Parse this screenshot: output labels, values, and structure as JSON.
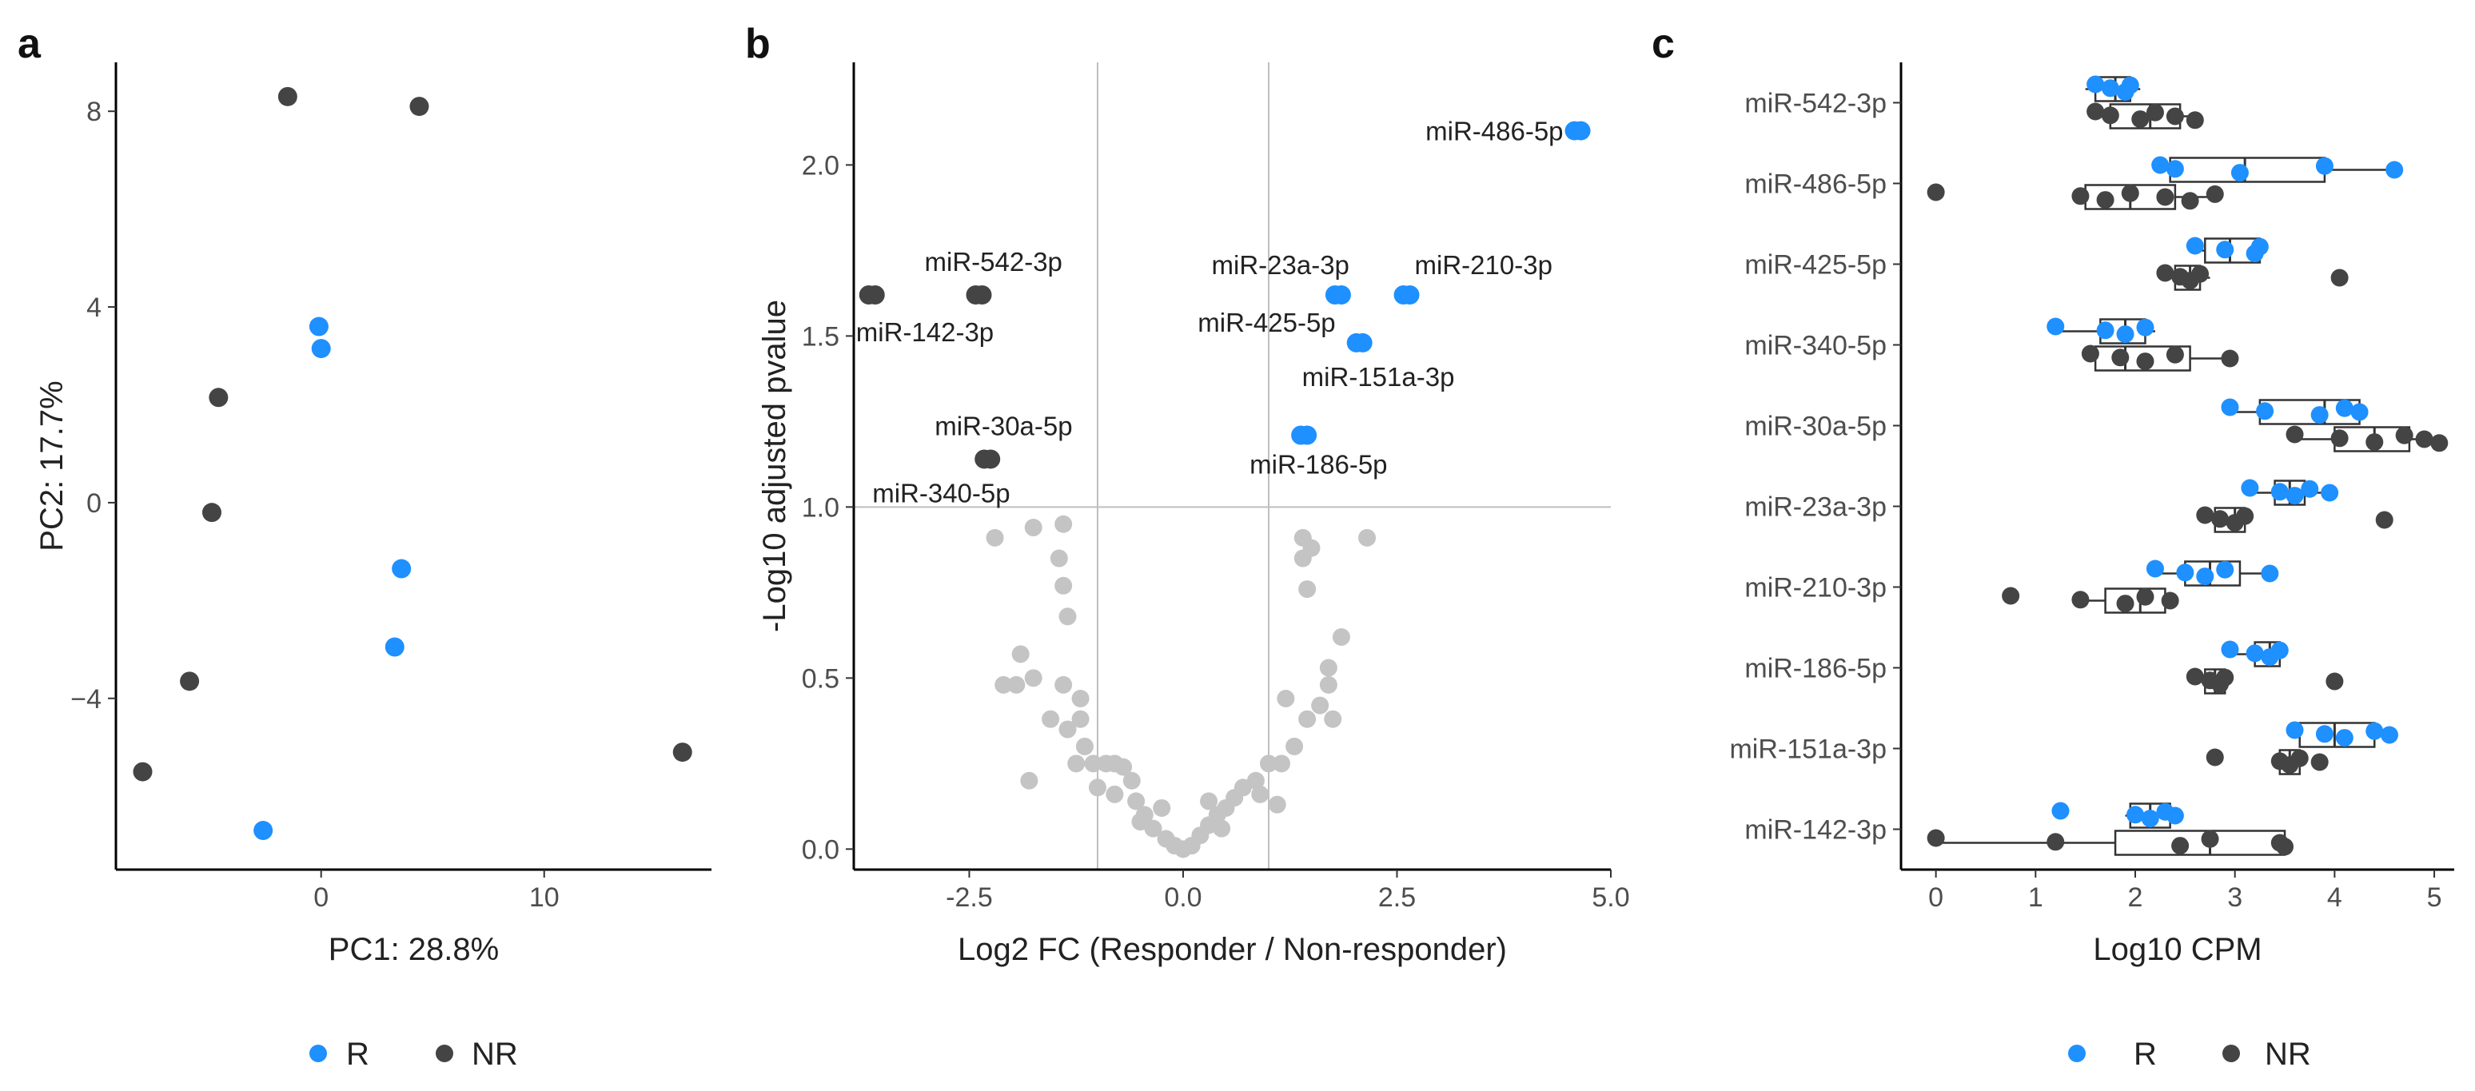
{
  "colors": {
    "R": "#1E90FF",
    "NR": "#444444",
    "ns": "#C4C4C4",
    "ref_line": "#BEBEBE",
    "box_line": "#333333"
  },
  "legend_a": {
    "r_label": "R",
    "nr_label": "NR"
  },
  "legend_c": {
    "r_label": "R",
    "nr_label": "NR"
  },
  "chart_data": [
    {
      "panel": "a",
      "type": "scatter",
      "xlabel": "PC1: 28.8%",
      "ylabel": "PC2: 17.7%",
      "xlim": [
        -9.2,
        17.5
      ],
      "ylim": [
        -7.5,
        9.0
      ],
      "xticks": [
        0,
        10
      ],
      "yticks": [
        -4,
        0,
        4,
        8
      ],
      "grid": false,
      "legend": "bottom",
      "series": [
        {
          "name": "R",
          "points": [
            [
              -0.1,
              3.6
            ],
            [
              0.0,
              3.15
            ],
            [
              3.6,
              -1.35
            ],
            [
              3.3,
              -2.95
            ],
            [
              -2.6,
              -6.7
            ]
          ]
        },
        {
          "name": "NR",
          "points": [
            [
              -1.5,
              8.3
            ],
            [
              4.4,
              8.1
            ],
            [
              -4.6,
              2.15
            ],
            [
              -4.9,
              -0.2
            ],
            [
              -5.9,
              -3.65
            ],
            [
              -8.0,
              -5.5
            ],
            [
              16.2,
              -5.1
            ]
          ]
        }
      ]
    },
    {
      "panel": "b",
      "type": "scatter",
      "xlabel": "Log2 FC (Responder / Non-responder)",
      "ylabel": "-Log10 adjusted pvalue",
      "xlim": [
        -3.85,
        5.0
      ],
      "ylim": [
        -0.06,
        2.3
      ],
      "xticks": [
        -2.5,
        0.0,
        2.5,
        5.0
      ],
      "xtick_labels": [
        "-2.5",
        "0.0",
        "2.5",
        "5.0"
      ],
      "yticks": [
        0.0,
        0.5,
        1.0,
        1.5,
        2.0
      ],
      "ytick_labels": [
        "0.0",
        "0.5",
        "1.0",
        "1.5",
        "2.0"
      ],
      "vlines": [
        -1,
        1
      ],
      "hlines": [
        1.0
      ],
      "grid": false,
      "labeled_points": [
        {
          "label": "miR-486-5p",
          "group": "R",
          "x": 4.65,
          "y": 2.1
        },
        {
          "label": "miR-23a-3p",
          "group": "R",
          "x": 1.85,
          "y": 1.62
        },
        {
          "label": "miR-210-3p",
          "group": "R",
          "x": 2.65,
          "y": 1.62
        },
        {
          "label": "miR-425-5p",
          "group": "R",
          "x": 2.1,
          "y": 1.48
        },
        {
          "label": "miR-151a-3p",
          "group": "R",
          "x": 2.1,
          "y": 1.48
        },
        {
          "label": "miR-186-5p",
          "group": "R",
          "x": 1.45,
          "y": 1.21
        },
        {
          "label": "miR-542-3p",
          "group": "NR",
          "x": -2.35,
          "y": 1.62
        },
        {
          "label": "miR-142-3p",
          "group": "NR",
          "x": -3.6,
          "y": 1.62
        },
        {
          "label": "miR-30a-5p",
          "group": "NR",
          "x": -2.25,
          "y": 1.14
        },
        {
          "label": "miR-340-5p",
          "group": "NR",
          "x": -2.25,
          "y": 1.14
        }
      ],
      "nonsignificant_points": [
        [
          -2.2,
          0.91
        ],
        [
          -1.75,
          0.94
        ],
        [
          -1.4,
          0.95
        ],
        [
          -1.45,
          0.85
        ],
        [
          -1.4,
          0.77
        ],
        [
          -1.35,
          0.68
        ],
        [
          -1.9,
          0.57
        ],
        [
          -2.1,
          0.48
        ],
        [
          -1.95,
          0.48
        ],
        [
          -1.75,
          0.5
        ],
        [
          -1.4,
          0.48
        ],
        [
          -1.55,
          0.38
        ],
        [
          -1.35,
          0.35
        ],
        [
          -1.2,
          0.44
        ],
        [
          -1.2,
          0.38
        ],
        [
          -1.15,
          0.3
        ],
        [
          -1.25,
          0.25
        ],
        [
          -1.05,
          0.25
        ],
        [
          -0.9,
          0.25
        ],
        [
          -0.8,
          0.25
        ],
        [
          -0.7,
          0.24
        ],
        [
          -0.6,
          0.2
        ],
        [
          -0.55,
          0.14
        ],
        [
          -0.45,
          0.1
        ],
        [
          -0.35,
          0.06
        ],
        [
          -0.2,
          0.03
        ],
        [
          -0.1,
          0.01
        ],
        [
          0.0,
          0.0
        ],
        [
          0.1,
          0.01
        ],
        [
          0.2,
          0.04
        ],
        [
          0.3,
          0.07
        ],
        [
          0.4,
          0.1
        ],
        [
          0.5,
          0.12
        ],
        [
          0.6,
          0.15
        ],
        [
          0.7,
          0.18
        ],
        [
          0.85,
          0.2
        ],
        [
          1.0,
          0.25
        ],
        [
          1.15,
          0.25
        ],
        [
          1.3,
          0.3
        ],
        [
          1.45,
          0.38
        ],
        [
          1.6,
          0.42
        ],
        [
          1.2,
          0.44
        ],
        [
          1.7,
          0.48
        ],
        [
          1.75,
          0.38
        ],
        [
          1.7,
          0.53
        ],
        [
          1.45,
          0.76
        ],
        [
          1.4,
          0.85
        ],
        [
          1.4,
          0.91
        ],
        [
          1.5,
          0.88
        ],
        [
          1.85,
          0.62
        ],
        [
          2.15,
          0.91
        ],
        [
          -1.0,
          0.18
        ],
        [
          -0.8,
          0.16
        ],
        [
          0.9,
          0.16
        ],
        [
          -1.8,
          0.2
        ],
        [
          -0.5,
          0.08
        ],
        [
          0.45,
          0.06
        ],
        [
          -0.25,
          0.12
        ],
        [
          0.3,
          0.14
        ],
        [
          1.1,
          0.13
        ]
      ]
    },
    {
      "panel": "c",
      "type": "box",
      "xlabel": "Log10 CPM",
      "xlim": [
        -0.35,
        5.2
      ],
      "xticks": [
        0,
        1,
        2,
        3,
        4,
        5
      ],
      "grid": false,
      "legend": "bottom",
      "categories": [
        "miR-542-3p",
        "miR-486-5p",
        "miR-425-5p",
        "miR-340-5p",
        "miR-30a-5p",
        "miR-23a-3p",
        "miR-210-3p",
        "miR-186-5p",
        "miR-151a-3p",
        "miR-142-3p"
      ],
      "groups": [
        {
          "name": "R",
          "boxes": [
            {
              "q1": 1.6,
              "median": 1.8,
              "q3": 1.95,
              "min": 1.5,
              "max": 2.05,
              "points": [
                1.6,
                1.75,
                1.9,
                1.95
              ]
            },
            {
              "q1": 2.35,
              "median": 3.1,
              "q3": 3.9,
              "min": 2.2,
              "max": 4.55,
              "points": [
                2.25,
                2.4,
                3.05,
                3.9,
                4.6
              ]
            },
            {
              "q1": 2.7,
              "median": 2.95,
              "q3": 3.25,
              "min": 2.6,
              "max": 3.3,
              "points": [
                2.6,
                2.9,
                3.2,
                3.25
              ]
            },
            {
              "q1": 1.65,
              "median": 1.9,
              "q3": 2.1,
              "min": 1.2,
              "max": 2.2,
              "points": [
                1.2,
                1.7,
                1.9,
                2.1
              ]
            },
            {
              "q1": 3.25,
              "median": 3.9,
              "q3": 4.25,
              "min": 2.95,
              "max": 4.3,
              "points": [
                2.95,
                3.3,
                3.85,
                4.1,
                4.25
              ]
            },
            {
              "q1": 3.4,
              "median": 3.55,
              "q3": 3.7,
              "min": 3.15,
              "max": 3.95,
              "points": [
                3.15,
                3.45,
                3.6,
                3.75,
                3.95
              ]
            },
            {
              "q1": 2.5,
              "median": 2.75,
              "q3": 3.05,
              "min": 2.2,
              "max": 3.4,
              "points": [
                2.2,
                2.5,
                2.7,
                2.9,
                3.35
              ]
            },
            {
              "q1": 3.2,
              "median": 3.35,
              "q3": 3.45,
              "min": 2.95,
              "max": 3.5,
              "points": [
                2.95,
                3.2,
                3.35,
                3.45
              ]
            },
            {
              "q1": 3.65,
              "median": 4.0,
              "q3": 4.4,
              "min": 3.55,
              "max": 4.55,
              "points": [
                3.6,
                3.9,
                4.1,
                4.4,
                4.55
              ]
            },
            {
              "q1": 1.95,
              "median": 2.15,
              "q3": 2.35,
              "min": 1.9,
              "max": 2.4,
              "points": [
                1.25,
                2.0,
                2.15,
                2.3,
                2.4
              ]
            }
          ]
        },
        {
          "name": "NR",
          "boxes": [
            {
              "q1": 1.75,
              "median": 2.15,
              "q3": 2.45,
              "min": 1.55,
              "max": 2.65,
              "points": [
                1.6,
                1.75,
                2.05,
                2.2,
                2.4,
                2.6
              ]
            },
            {
              "q1": 1.5,
              "median": 1.95,
              "q3": 2.4,
              "min": 1.4,
              "max": 2.8,
              "points": [
                0.0,
                1.45,
                1.7,
                1.95,
                2.3,
                2.55,
                2.8
              ]
            },
            {
              "q1": 2.4,
              "median": 2.55,
              "q3": 2.65,
              "min": 2.25,
              "max": 2.75,
              "points": [
                2.3,
                2.45,
                2.55,
                2.65,
                4.05
              ]
            },
            {
              "q1": 1.6,
              "median": 1.9,
              "q3": 2.55,
              "min": 1.5,
              "max": 2.95,
              "points": [
                1.55,
                1.85,
                2.1,
                2.4,
                2.95
              ]
            },
            {
              "q1": 4.0,
              "median": 4.4,
              "q3": 4.75,
              "min": 3.6,
              "max": 5.05,
              "points": [
                3.6,
                4.05,
                4.4,
                4.7,
                4.9,
                5.05
              ]
            },
            {
              "q1": 2.8,
              "median": 3.0,
              "q3": 3.1,
              "min": 2.65,
              "max": 3.15,
              "points": [
                2.7,
                2.85,
                3.0,
                3.1,
                4.5
              ]
            },
            {
              "q1": 1.7,
              "median": 2.05,
              "q3": 2.3,
              "min": 1.4,
              "max": 2.35,
              "points": [
                0.75,
                1.45,
                1.9,
                2.1,
                2.35
              ]
            },
            {
              "q1": 2.7,
              "median": 2.8,
              "q3": 2.9,
              "min": 2.55,
              "max": 2.95,
              "points": [
                2.6,
                2.75,
                2.85,
                2.9,
                4.0
              ]
            },
            {
              "q1": 3.45,
              "median": 3.55,
              "q3": 3.65,
              "min": 3.4,
              "max": 3.7,
              "points": [
                2.8,
                3.45,
                3.55,
                3.65,
                3.85
              ]
            },
            {
              "q1": 1.8,
              "median": 2.75,
              "q3": 3.5,
              "min": 0.0,
              "max": 3.5,
              "points": [
                0.0,
                1.2,
                2.45,
                2.75,
                3.45,
                3.5
              ]
            }
          ]
        }
      ]
    }
  ]
}
